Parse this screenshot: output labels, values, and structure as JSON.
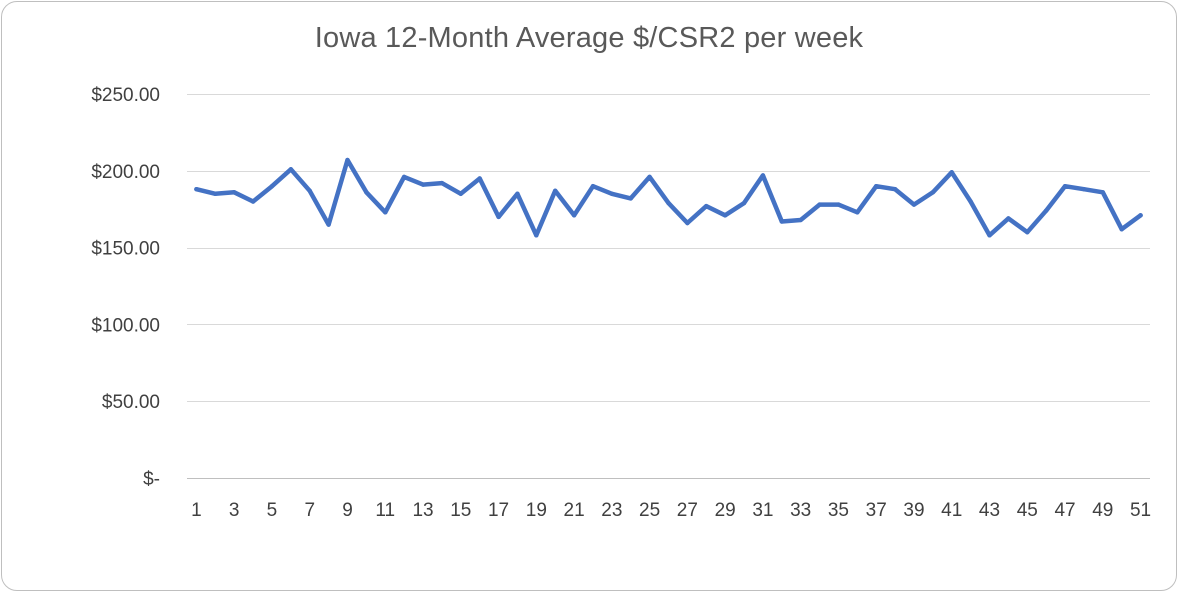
{
  "chart_data": {
    "type": "line",
    "title": "Iowa 12-Month Average $/CSR2 per week",
    "xlabel": "",
    "ylabel": "",
    "ylim": [
      0,
      250
    ],
    "ytick_values": [
      0,
      50,
      100,
      150,
      200,
      250
    ],
    "ytick_labels": [
      "$-",
      "$50.00",
      "$100.00",
      "$150.00",
      "$200.00",
      "$250.00"
    ],
    "xtick_labels": [
      "1",
      "3",
      "5",
      "7",
      "9",
      "11",
      "13",
      "15",
      "17",
      "19",
      "21",
      "23",
      "25",
      "27",
      "29",
      "31",
      "33",
      "35",
      "37",
      "39",
      "41",
      "43",
      "45",
      "47",
      "49",
      "51"
    ],
    "grid": true,
    "legend": "none",
    "line_color": "#4472c4",
    "series": [
      {
        "x": [
          1,
          2,
          3,
          4,
          5,
          6,
          7,
          8,
          9,
          10,
          11,
          12,
          13,
          14,
          15,
          16,
          17,
          18,
          19,
          20,
          21,
          22,
          23,
          24,
          25,
          26,
          27,
          28,
          29,
          30,
          31,
          32,
          33,
          34,
          35,
          36,
          37,
          38,
          39,
          40,
          41,
          42,
          43,
          44,
          45,
          46,
          47,
          48,
          49,
          50,
          51
        ],
        "values": [
          188,
          185,
          186,
          180,
          190,
          201,
          187,
          165,
          207,
          186,
          173,
          196,
          191,
          192,
          185,
          195,
          170,
          185,
          158,
          187,
          171,
          190,
          185,
          182,
          196,
          179,
          166,
          177,
          171,
          179,
          197,
          167,
          168,
          178,
          178,
          173,
          190,
          188,
          178,
          186,
          199,
          180,
          158,
          169,
          160,
          174,
          190,
          188,
          186,
          162,
          171
        ]
      }
    ]
  }
}
